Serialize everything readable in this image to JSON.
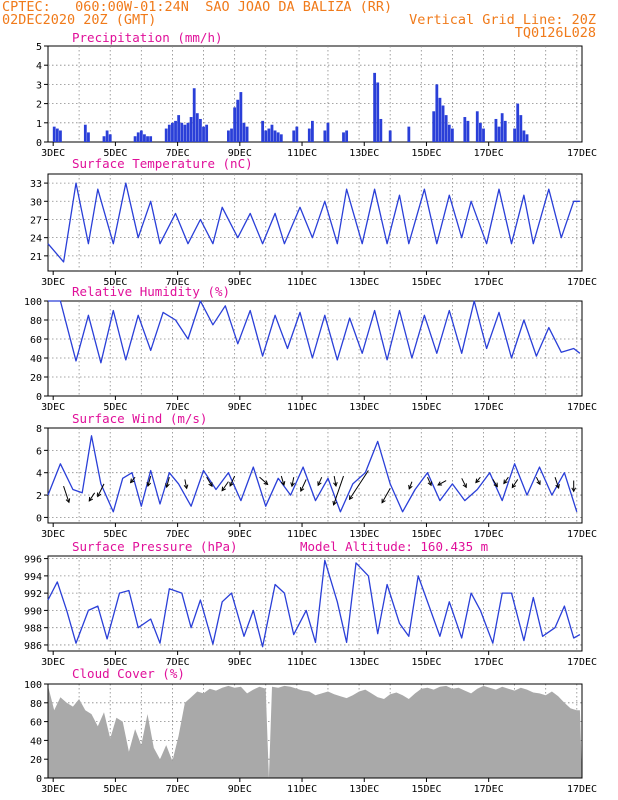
{
  "header": {
    "line1_left": "CPTEC:   060:00W-01:24N  SAO JOAO DA BALIZA (RR)",
    "line2_left": "02DEC2020 20Z (GMT)",
    "line2_right": "Vertical Grid Line: 20Z",
    "line3_right": "TQ0126L028"
  },
  "colors": {
    "header": "#f07a1a",
    "panel_title": "#e0109a",
    "series": "#2a3fd8",
    "cloud": "#a9a9a9",
    "arrow": "#000000"
  },
  "x_axis": {
    "tick_labels": [
      "3DEC",
      "5DEC",
      "7DEC",
      "9DEC",
      "11DEC",
      "13DEC",
      "15DEC",
      "17DEC"
    ],
    "start": "02DEC2020 20Z",
    "end": "17DEC2020 00Z"
  },
  "chart_data": [
    {
      "type": "bar",
      "title": "Precipitation (mm/h)",
      "ylim": [
        0,
        5
      ],
      "yticks": [
        "0",
        "1",
        "2",
        "3",
        "4",
        "5"
      ],
      "grid": true,
      "x_day": [
        0.2,
        0.3,
        0.4,
        1.2,
        1.3,
        1.8,
        1.9,
        2.0,
        2.8,
        2.9,
        3.0,
        3.1,
        3.2,
        3.3,
        3.8,
        3.9,
        4.0,
        4.1,
        4.2,
        4.3,
        4.4,
        4.5,
        4.6,
        4.7,
        4.8,
        4.9,
        5.0,
        5.1,
        5.8,
        5.9,
        6.0,
        6.1,
        6.2,
        6.3,
        6.4,
        6.9,
        7.0,
        7.1,
        7.2,
        7.3,
        7.4,
        7.5,
        7.9,
        8.0,
        8.4,
        8.5,
        8.9,
        9.0,
        9.5,
        9.6,
        10.5,
        10.6,
        10.7,
        11.0,
        11.6,
        12.4,
        12.5,
        12.6,
        12.7,
        12.8,
        12.9,
        13.0,
        13.4,
        13.5,
        13.8,
        13.9,
        14.0,
        14.4,
        14.5,
        14.6,
        14.7,
        15.0,
        15.1,
        15.2,
        15.3,
        15.4
      ],
      "values": [
        0.8,
        0.7,
        0.6,
        0.9,
        0.5,
        0.3,
        0.6,
        0.4,
        0.3,
        0.5,
        0.6,
        0.4,
        0.3,
        0.3,
        0.7,
        0.9,
        1.0,
        1.1,
        1.4,
        1.0,
        0.9,
        1.0,
        1.3,
        2.8,
        1.5,
        1.2,
        0.8,
        0.9,
        0.6,
        0.7,
        1.8,
        2.2,
        2.6,
        1.0,
        0.8,
        1.1,
        0.6,
        0.7,
        0.9,
        0.6,
        0.5,
        0.4,
        0.6,
        0.8,
        0.7,
        1.1,
        0.6,
        1.0,
        0.5,
        0.6,
        3.6,
        3.1,
        1.2,
        0.6,
        0.8,
        1.6,
        3.0,
        2.3,
        1.9,
        1.4,
        0.9,
        0.7,
        1.3,
        1.1,
        1.6,
        1.0,
        0.7,
        1.2,
        0.8,
        1.5,
        1.1,
        0.7,
        2.0,
        1.4,
        0.6,
        0.4
      ]
    },
    {
      "type": "line",
      "title": "Surface Temperature (nC)",
      "ylim": [
        18.5,
        34.5
      ],
      "yticks": [
        "21",
        "24",
        "27",
        "30",
        "33"
      ],
      "grid": true,
      "x_day": [
        0.0,
        0.5,
        0.9,
        1.3,
        1.6,
        2.1,
        2.5,
        2.9,
        3.3,
        3.6,
        4.1,
        4.5,
        4.9,
        5.3,
        5.6,
        6.1,
        6.5,
        6.9,
        7.3,
        7.6,
        8.1,
        8.5,
        8.9,
        9.3,
        9.6,
        10.1,
        10.5,
        10.9,
        11.3,
        11.6,
        12.1,
        12.5,
        12.9,
        13.3,
        13.6,
        14.1,
        14.5,
        14.9,
        15.3,
        15.6,
        16.1,
        16.5,
        16.9,
        17.1
      ],
      "values": [
        23,
        20,
        33,
        23,
        32,
        23,
        33,
        24,
        30,
        23,
        28,
        23,
        27,
        23,
        29,
        24,
        28,
        23,
        28,
        23,
        29,
        24,
        30,
        23,
        32,
        23,
        32,
        23,
        31,
        23,
        32,
        23,
        31,
        24,
        30,
        23,
        32,
        23,
        31,
        23,
        32,
        24,
        30,
        30
      ]
    },
    {
      "type": "line",
      "title": "Relative Humidity (%)",
      "ylim": [
        0,
        100
      ],
      "yticks": [
        "0",
        "20",
        "40",
        "60",
        "80",
        "100"
      ],
      "grid": true,
      "x_day": [
        0.0,
        0.4,
        0.9,
        1.3,
        1.7,
        2.1,
        2.5,
        2.9,
        3.3,
        3.7,
        4.1,
        4.5,
        4.9,
        5.3,
        5.7,
        6.1,
        6.5,
        6.9,
        7.3,
        7.7,
        8.1,
        8.5,
        8.9,
        9.3,
        9.7,
        10.1,
        10.5,
        10.9,
        11.3,
        11.7,
        12.1,
        12.5,
        12.9,
        13.3,
        13.7,
        14.1,
        14.5,
        14.9,
        15.3,
        15.7,
        16.1,
        16.5,
        16.9,
        17.1
      ],
      "values": [
        100,
        100,
        37,
        85,
        35,
        90,
        38,
        85,
        48,
        88,
        80,
        60,
        100,
        75,
        95,
        55,
        90,
        42,
        85,
        50,
        88,
        40,
        85,
        38,
        82,
        45,
        90,
        38,
        90,
        40,
        85,
        45,
        90,
        45,
        100,
        50,
        88,
        40,
        80,
        42,
        72,
        46,
        50,
        45
      ]
    },
    {
      "type": "line",
      "title": "Surface Wind (m/s)",
      "ylim": [
        -0.5,
        8
      ],
      "yticks": [
        "0",
        "2",
        "4",
        "6",
        "8"
      ],
      "grid": true,
      "x_day": [
        0.0,
        0.4,
        0.8,
        1.1,
        1.4,
        1.7,
        2.1,
        2.4,
        2.7,
        3.0,
        3.3,
        3.6,
        3.9,
        4.2,
        4.6,
        5.0,
        5.4,
        5.8,
        6.2,
        6.6,
        7.0,
        7.4,
        7.8,
        8.2,
        8.6,
        9.0,
        9.4,
        9.8,
        10.2,
        10.6,
        11.0,
        11.4,
        11.8,
        12.2,
        12.6,
        13.0,
        13.4,
        13.8,
        14.2,
        14.6,
        15.0,
        15.4,
        15.8,
        16.2,
        16.6,
        17.0
      ],
      "values": [
        2,
        4.8,
        2.5,
        2.2,
        7.3,
        3,
        0.5,
        3.5,
        4,
        1,
        4.2,
        1.2,
        4,
        3,
        1,
        4.2,
        2.5,
        4,
        1.5,
        4.5,
        1,
        3.5,
        2,
        4.5,
        1.5,
        3.5,
        0.5,
        3,
        4,
        6.8,
        3,
        0.5,
        2.5,
        4,
        1.5,
        3,
        1.5,
        2.5,
        4,
        1.5,
        4.8,
        2,
        4.5,
        2,
        4,
        0.5
      ],
      "arrows": [
        {
          "x_day": 0.5,
          "y": 2.8,
          "u": 0.6,
          "v": -1.8
        },
        {
          "x_day": 1.5,
          "y": 2.2,
          "u": -0.6,
          "v": -0.9
        },
        {
          "x_day": 1.8,
          "y": 3.0,
          "u": -0.7,
          "v": -1.4
        },
        {
          "x_day": 2.8,
          "y": 3.6,
          "u": -0.5,
          "v": -0.6
        },
        {
          "x_day": 3.3,
          "y": 3.7,
          "u": -0.3,
          "v": -1.1
        },
        {
          "x_day": 3.9,
          "y": 3.6,
          "u": -0.3,
          "v": -1.1
        },
        {
          "x_day": 4.4,
          "y": 3.4,
          "u": 0.2,
          "v": -1.0
        },
        {
          "x_day": 5.1,
          "y": 3.6,
          "u": 0.6,
          "v": -1.0
        },
        {
          "x_day": 5.8,
          "y": 3.2,
          "u": -0.7,
          "v": -1.0
        },
        {
          "x_day": 6.0,
          "y": 3.7,
          "u": -0.5,
          "v": -1.1
        },
        {
          "x_day": 6.8,
          "y": 3.6,
          "u": 0.9,
          "v": -0.8
        },
        {
          "x_day": 7.5,
          "y": 3.7,
          "u": 0.3,
          "v": -1.0
        },
        {
          "x_day": 7.9,
          "y": 3.6,
          "u": -0.2,
          "v": -1.0
        },
        {
          "x_day": 8.3,
          "y": 3.4,
          "u": -0.6,
          "v": -1.3
        },
        {
          "x_day": 8.8,
          "y": 3.6,
          "u": -0.4,
          "v": -0.9
        },
        {
          "x_day": 9.2,
          "y": 3.7,
          "u": 0.2,
          "v": -1.1
        },
        {
          "x_day": 9.5,
          "y": 3.7,
          "u": -1.1,
          "v": -3.2
        },
        {
          "x_day": 10.3,
          "y": 4.2,
          "u": -2.1,
          "v": -3.2
        },
        {
          "x_day": 11.0,
          "y": 2.6,
          "u": -0.9,
          "v": -1.6
        },
        {
          "x_day": 11.7,
          "y": 3.2,
          "u": -0.3,
          "v": -0.8
        },
        {
          "x_day": 12.2,
          "y": 3.6,
          "u": 0.4,
          "v": -0.9
        },
        {
          "x_day": 12.8,
          "y": 3.3,
          "u": -0.9,
          "v": -0.5
        },
        {
          "x_day": 13.3,
          "y": 3.5,
          "u": 0.5,
          "v": -1.0
        },
        {
          "x_day": 13.9,
          "y": 3.6,
          "u": -0.5,
          "v": -0.6
        },
        {
          "x_day": 14.3,
          "y": 3.4,
          "u": 0.5,
          "v": -0.8
        },
        {
          "x_day": 14.8,
          "y": 3.6,
          "u": -0.5,
          "v": -0.7
        },
        {
          "x_day": 15.1,
          "y": 3.4,
          "u": -0.6,
          "v": -0.9
        },
        {
          "x_day": 15.7,
          "y": 3.6,
          "u": 0.4,
          "v": -0.8
        },
        {
          "x_day": 16.3,
          "y": 3.6,
          "u": 0.4,
          "v": -1.2
        },
        {
          "x_day": 16.9,
          "y": 3.3,
          "u": 0.0,
          "v": -1.2
        }
      ]
    },
    {
      "type": "line",
      "title": "Surface Pressure (hPa)",
      "subtitle": "Model Altitude: 160.435 m",
      "ylim": [
        985.3,
        996.3
      ],
      "yticks": [
        "986",
        "988",
        "990",
        "992",
        "994",
        "996"
      ],
      "grid": true,
      "x_day": [
        0.0,
        0.3,
        0.6,
        0.9,
        1.3,
        1.6,
        1.9,
        2.3,
        2.6,
        2.9,
        3.3,
        3.6,
        3.9,
        4.3,
        4.6,
        4.9,
        5.3,
        5.6,
        5.9,
        6.3,
        6.6,
        6.9,
        7.3,
        7.6,
        7.9,
        8.3,
        8.6,
        8.9,
        9.3,
        9.6,
        9.9,
        10.3,
        10.6,
        10.9,
        11.3,
        11.6,
        11.9,
        12.3,
        12.6,
        12.9,
        13.3,
        13.6,
        13.9,
        14.3,
        14.6,
        14.9,
        15.3,
        15.6,
        15.9,
        16.3,
        16.6,
        16.9,
        17.1
      ],
      "values": [
        991.2,
        993.3,
        990.0,
        986.2,
        990.0,
        990.5,
        986.7,
        992.0,
        992.3,
        988.0,
        989.0,
        986.2,
        992.5,
        992.0,
        988.0,
        991.2,
        986.1,
        991.0,
        992.0,
        987.0,
        990.0,
        985.8,
        993.0,
        992.0,
        987.2,
        990.0,
        986.3,
        995.8,
        991.0,
        986.3,
        995.5,
        994.0,
        987.3,
        993.0,
        988.5,
        987.0,
        994.0,
        990.0,
        987.0,
        991.0,
        986.8,
        992.0,
        990.0,
        986.2,
        992.0,
        992.0,
        986.5,
        991.5,
        987.0,
        988.0,
        990.5,
        986.8,
        987.2
      ]
    },
    {
      "type": "area",
      "title": "Cloud Cover (%)",
      "ylim": [
        0,
        100
      ],
      "yticks": [
        "0",
        "20",
        "40",
        "60",
        "80",
        "100"
      ],
      "grid": true,
      "x_day": [
        0.0,
        0.2,
        0.4,
        0.6,
        0.8,
        1.0,
        1.2,
        1.4,
        1.6,
        1.8,
        2.0,
        2.2,
        2.4,
        2.6,
        2.8,
        3.0,
        3.2,
        3.4,
        3.6,
        3.8,
        4.0,
        4.2,
        4.4,
        4.6,
        4.8,
        5.0,
        5.2,
        5.4,
        5.6,
        5.8,
        6.0,
        6.2,
        6.4,
        6.6,
        6.8,
        7.0,
        7.1,
        7.2,
        7.4,
        7.6,
        7.8,
        8.0,
        8.2,
        8.4,
        8.6,
        8.8,
        9.0,
        9.2,
        9.4,
        9.6,
        9.8,
        10.0,
        10.2,
        10.4,
        10.6,
        10.8,
        11.0,
        11.2,
        11.4,
        11.6,
        11.8,
        12.0,
        12.2,
        12.4,
        12.6,
        12.8,
        13.0,
        13.2,
        13.4,
        13.6,
        13.8,
        14.0,
        14.2,
        14.4,
        14.6,
        14.8,
        15.0,
        15.2,
        15.4,
        15.6,
        15.8,
        16.0,
        16.2,
        16.4,
        16.6,
        16.8,
        17.0,
        17.1
      ],
      "values": [
        98,
        72,
        86,
        80,
        76,
        84,
        72,
        68,
        55,
        70,
        42,
        64,
        60,
        28,
        52,
        35,
        68,
        32,
        20,
        35,
        18,
        45,
        80,
        86,
        92,
        90,
        95,
        93,
        96,
        98,
        96,
        97,
        90,
        94,
        97,
        95,
        0,
        97,
        96,
        98,
        97,
        95,
        93,
        92,
        88,
        90,
        92,
        89,
        87,
        85,
        88,
        92,
        94,
        90,
        86,
        84,
        89,
        91,
        88,
        84,
        90,
        95,
        96,
        94,
        97,
        98,
        95,
        96,
        93,
        90,
        95,
        98,
        96,
        94,
        97,
        95,
        93,
        96,
        94,
        91,
        90,
        88,
        92,
        87,
        80,
        74,
        72,
        72
      ]
    }
  ]
}
